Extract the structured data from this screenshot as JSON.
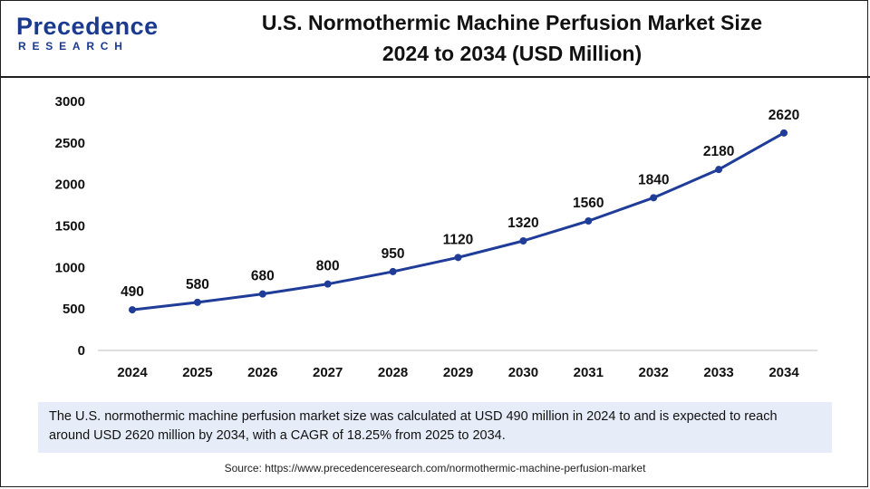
{
  "brand": {
    "logo_top": "Precedence",
    "logo_bottom": "RESEARCH",
    "color": "#1b3a8f"
  },
  "chart_data": {
    "type": "line",
    "title": "U.S. Normothermic Machine Perfusion Market Size",
    "subtitle": "2024 to 2034 (USD Million)",
    "categories": [
      "2024",
      "2025",
      "2026",
      "2027",
      "2028",
      "2029",
      "2030",
      "2031",
      "2032",
      "2033",
      "2034"
    ],
    "series": [
      {
        "name": "Market Size (USD Million)",
        "values": [
          490,
          580,
          680,
          800,
          950,
          1120,
          1320,
          1560,
          1840,
          2180,
          2620
        ],
        "color": "#1f3c99"
      }
    ],
    "yticks": [
      0,
      500,
      1000,
      1500,
      2000,
      2500,
      3000
    ],
    "ylim": [
      0,
      3000
    ],
    "xlabel": "",
    "ylabel": "",
    "grid": false,
    "legend": "none"
  },
  "summary": "The U.S. normothermic machine perfusion market  size was calculated at USD 490 million in 2024 to and is expected to reach around USD 2620 million by 2034, with a CAGR of 18.25% from 2025 to 2034.",
  "source": "Source: https://www.precedenceresearch.com/normothermic-machine-perfusion-market"
}
